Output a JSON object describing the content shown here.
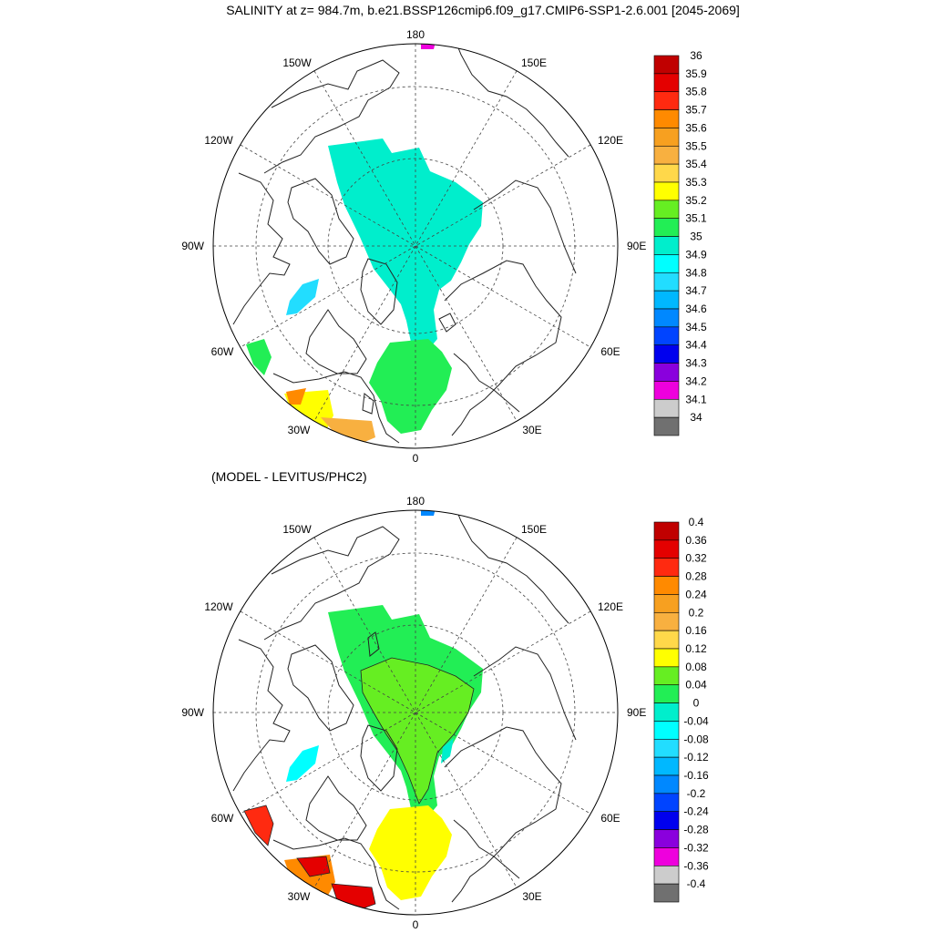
{
  "title": "SALINITY at z= 984.7m, b.e21.BSSP126cmip6.f09_g17.CMIP6-SSP1-2.6.001 [2045-2069]",
  "diff_title": "(MODEL - LEVITUS/PHC2)",
  "lon_labels": {
    "top": "180",
    "bottom": "0",
    "left": "90W",
    "right": "90E",
    "upper_left_1": "150W",
    "upper_left_2": "120W",
    "upper_right_1": "150E",
    "upper_right_2": "120E",
    "lower_left_1": "60W",
    "lower_left_2": "30W",
    "lower_right_1": "60E",
    "lower_right_2": "30E"
  },
  "top_colorbar": {
    "labels": [
      "36",
      "35.9",
      "35.8",
      "35.7",
      "35.6",
      "35.5",
      "35.4",
      "35.3",
      "35.2",
      "35.1",
      "35",
      "34.9",
      "34.8",
      "34.7",
      "34.6",
      "34.5",
      "34.4",
      "34.3",
      "34.2",
      "34.1",
      "34"
    ],
    "colors": [
      "#c00000",
      "#e40000",
      "#ff2a10",
      "#ff8a00",
      "#f7a020",
      "#f8b040",
      "#ffd84a",
      "#ffff00",
      "#66ee22",
      "#22ee55",
      "#00eecc",
      "#00ffff",
      "#22ddff",
      "#00b8ff",
      "#0088ff",
      "#0044ff",
      "#0000ee",
      "#8a00dd",
      "#ee00dd",
      "#cccccc",
      "#707070"
    ]
  },
  "bottom_colorbar": {
    "labels": [
      "0.4",
      "0.36",
      "0.32",
      "0.28",
      "0.24",
      "0.2",
      "0.16",
      "0.12",
      "0.08",
      "0.04",
      "0",
      "-0.04",
      "-0.08",
      "-0.12",
      "-0.16",
      "-0.2",
      "-0.24",
      "-0.28",
      "-0.32",
      "-0.36",
      "-0.4"
    ],
    "colors": [
      "#c00000",
      "#e40000",
      "#ff2a10",
      "#ff8a00",
      "#f7a020",
      "#f8b040",
      "#ffd84a",
      "#ffff00",
      "#66ee22",
      "#22ee55",
      "#00eecc",
      "#00ffff",
      "#22ddff",
      "#00b8ff",
      "#0088ff",
      "#0044ff",
      "#0000ee",
      "#8a00dd",
      "#ee00dd",
      "#cccccc",
      "#707070"
    ]
  }
}
